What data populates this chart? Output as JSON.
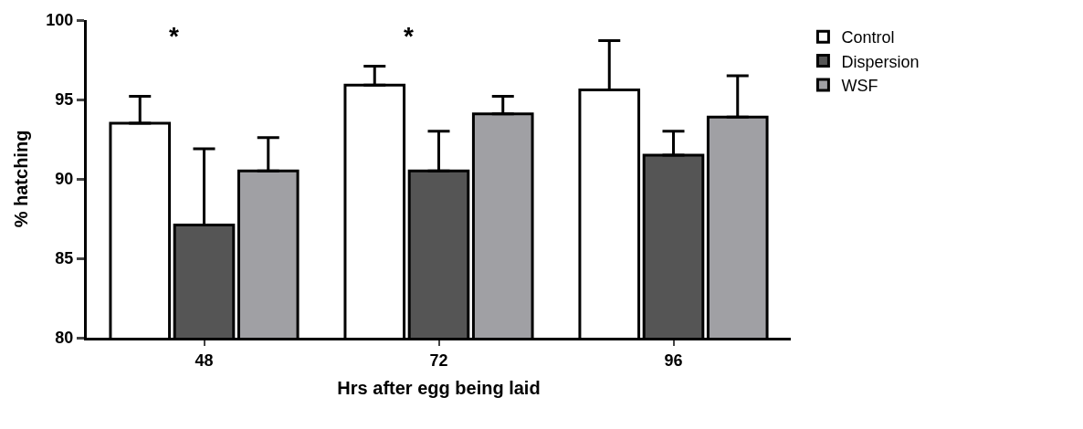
{
  "chart_data": {
    "type": "bar",
    "xlabel": "Hrs after egg being laid",
    "ylabel": "% hatching",
    "categories": [
      "48",
      "72",
      "96"
    ],
    "series": [
      {
        "name": "Control",
        "color": "#ffffff",
        "values": [
          93.5,
          95.9,
          95.6
        ],
        "errors": [
          [
            93.5,
            95.2
          ],
          [
            95.9,
            97.1
          ],
          [
            95.6,
            98.7
          ]
        ]
      },
      {
        "name": "Dispersion",
        "color": "#555555",
        "values": [
          87.1,
          90.5,
          91.5
        ],
        "errors": [
          [
            87.1,
            91.9
          ],
          [
            90.5,
            93.0
          ],
          [
            91.5,
            93.0
          ]
        ]
      },
      {
        "name": "WSF",
        "color": "#a0a0a4",
        "values": [
          90.5,
          94.1,
          93.9
        ],
        "errors": [
          [
            90.5,
            92.6
          ],
          [
            94.1,
            95.2
          ],
          [
            93.9,
            96.5
          ]
        ]
      }
    ],
    "ylim": [
      80,
      100
    ],
    "yticks": [
      80,
      85,
      90,
      95,
      100
    ],
    "annotations": [
      "*",
      "*"
    ],
    "legend": "top right"
  }
}
